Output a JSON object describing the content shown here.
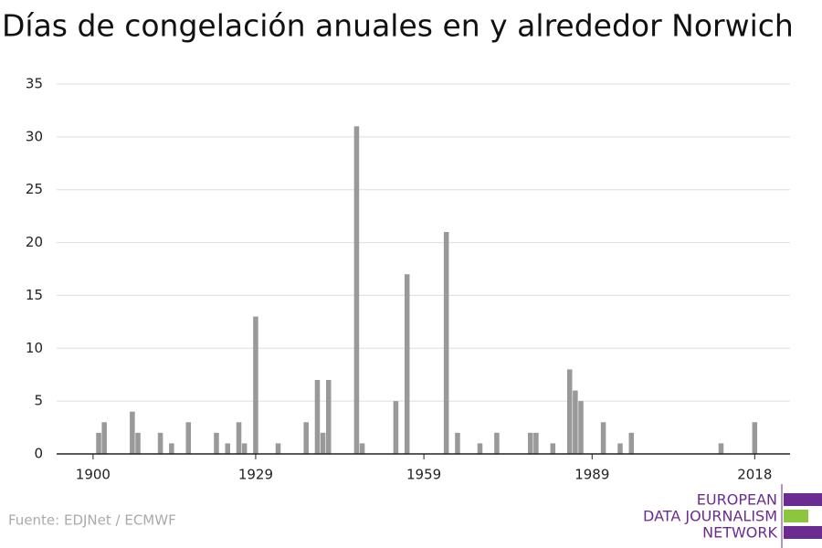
{
  "chart_data": {
    "type": "bar",
    "title": "Días de congelación anuales en y alrededor Norwich",
    "x": [
      1901,
      1902,
      1907,
      1908,
      1912,
      1914,
      1917,
      1922,
      1924,
      1926,
      1927,
      1929,
      1933,
      1938,
      1940,
      1941,
      1942,
      1947,
      1948,
      1954,
      1956,
      1963,
      1965,
      1969,
      1972,
      1978,
      1979,
      1982,
      1985,
      1986,
      1987,
      1991,
      1994,
      1996,
      2012,
      2018
    ],
    "values": [
      2,
      3,
      4,
      2,
      2,
      1,
      3,
      2,
      1,
      3,
      1,
      13,
      1,
      3,
      7,
      2,
      7,
      31,
      1,
      5,
      17,
      21,
      2,
      1,
      2,
      2,
      2,
      1,
      8,
      6,
      5,
      3,
      1,
      2,
      1,
      3
    ],
    "color": "#999999",
    "xlim": [
      1893.5,
      2024.3
    ],
    "xticks": [
      1900,
      1929,
      1959,
      1989,
      2018
    ],
    "ylim": [
      0,
      35
    ],
    "yticks": [
      0,
      5,
      10,
      15,
      20,
      25,
      30,
      35
    ],
    "grid": true,
    "source": "Fuente: EDJNet / ECMWF",
    "logo": [
      "EUROPEAN",
      "DATA JOURNALISM",
      "NETWORK"
    ]
  }
}
